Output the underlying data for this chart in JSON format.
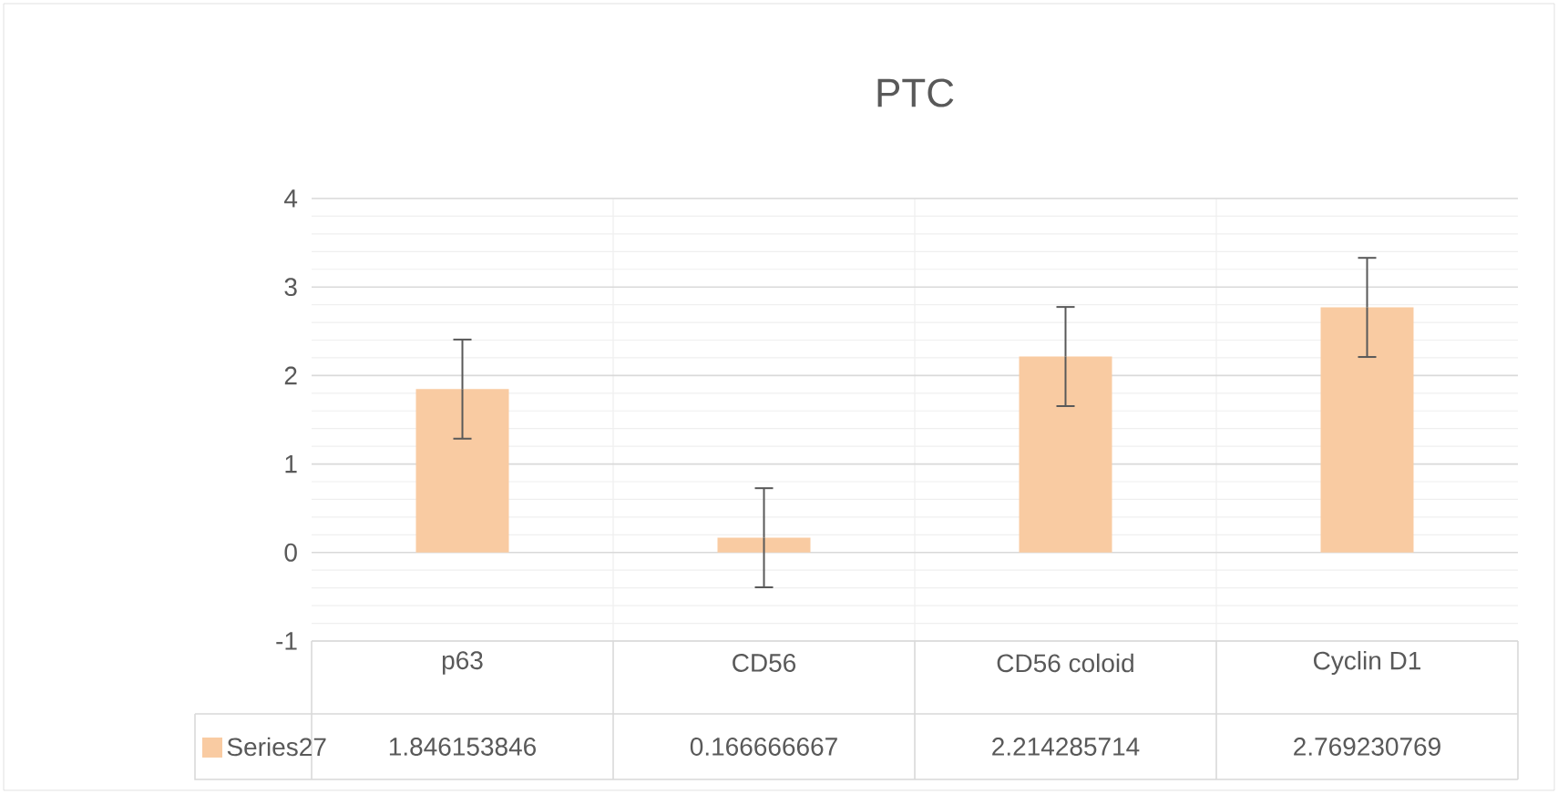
{
  "chart_data": {
    "type": "bar",
    "title": "PTC",
    "categories": [
      "p63",
      "CD56",
      "CD56 coloid",
      "Cyclin D1"
    ],
    "series": [
      {
        "name": "Series27",
        "color": "#f9cba2",
        "values": [
          1.846153846,
          0.166666667,
          2.214285714,
          2.769230769
        ],
        "errors": [
          0.56,
          0.56,
          0.56,
          0.56
        ],
        "value_labels": [
          "1.846153846",
          "0.166666667",
          "2.214285714",
          "2.769230769"
        ]
      }
    ],
    "ylim": [
      -1,
      4
    ],
    "yticks": [
      -1,
      0,
      1,
      2,
      3,
      4
    ],
    "grid": true,
    "legend": "bottom"
  }
}
